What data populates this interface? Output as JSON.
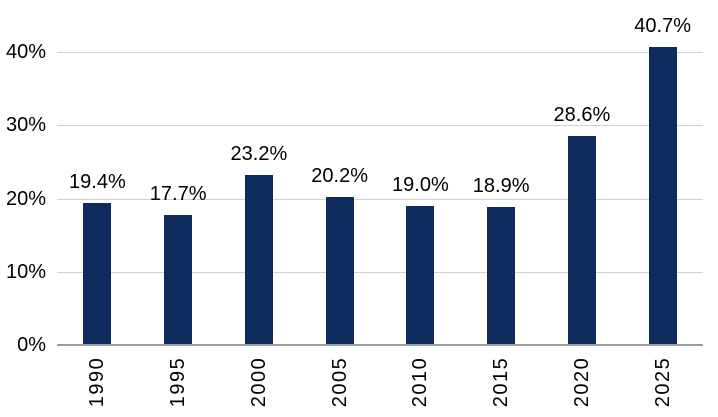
{
  "chart_data": {
    "type": "bar",
    "title": "",
    "categories": [
      "1990",
      "1995",
      "2000",
      "2005",
      "2010",
      "2015",
      "2020",
      "2025"
    ],
    "values": [
      19.4,
      17.7,
      23.2,
      20.2,
      19.0,
      18.9,
      28.6,
      40.7
    ],
    "value_labels": [
      "19.4%",
      "17.7%",
      "23.2%",
      "20.2%",
      "19.0%",
      "18.9%",
      "28.6%",
      "40.7%"
    ],
    "yticks": [
      0,
      10,
      20,
      30,
      40
    ],
    "ytick_labels": [
      "0%",
      "10%",
      "20%",
      "30%",
      "40%"
    ],
    "ylim": [
      0,
      40
    ],
    "xlabel": "",
    "ylabel": "",
    "grid": "horizontal",
    "legend": "none",
    "colors": {
      "bar": "#0E2B5D",
      "gridline": "#D0D0D0",
      "axis": "#9E9E9E",
      "text": "#000000",
      "background": "#FFFFFF"
    }
  }
}
